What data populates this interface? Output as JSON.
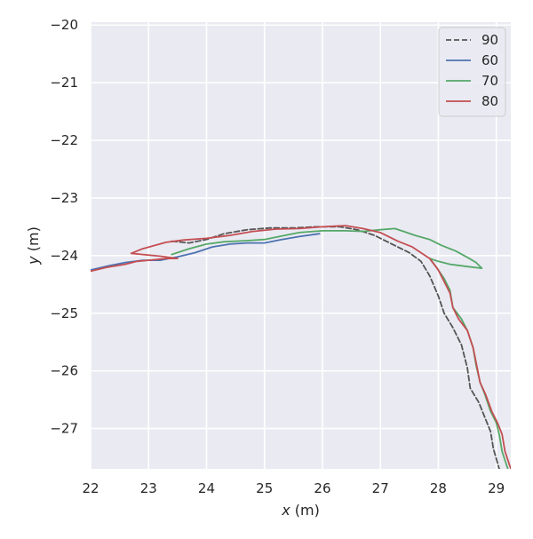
{
  "chart_data": {
    "type": "line",
    "xlabel_var": "x",
    "xlabel_unit": " (m)",
    "ylabel_var": "y",
    "ylabel_unit": " (m)",
    "xlim": [
      22.0,
      29.25
    ],
    "ylim": [
      -27.7,
      -19.95
    ],
    "xticks": [
      22,
      23,
      24,
      25,
      26,
      27,
      28,
      29
    ],
    "yticks": [
      -20,
      -21,
      -22,
      -23,
      -24,
      -25,
      -26,
      -27
    ],
    "grid": true,
    "legend_position": "top-right",
    "series": [
      {
        "name": "90",
        "color": "#555555",
        "dash": true,
        "points": [
          [
            23.4,
            -23.75
          ],
          [
            23.7,
            -23.78
          ],
          [
            24.0,
            -23.72
          ],
          [
            24.3,
            -23.62
          ],
          [
            24.7,
            -23.55
          ],
          [
            25.1,
            -23.52
          ],
          [
            25.5,
            -23.52
          ],
          [
            25.9,
            -23.5
          ],
          [
            26.3,
            -23.5
          ],
          [
            26.6,
            -23.55
          ],
          [
            26.9,
            -23.65
          ],
          [
            27.2,
            -23.8
          ],
          [
            27.5,
            -23.95
          ],
          [
            27.7,
            -24.1
          ],
          [
            27.85,
            -24.35
          ],
          [
            28.0,
            -24.7
          ],
          [
            28.1,
            -25.0
          ],
          [
            28.25,
            -25.25
          ],
          [
            28.4,
            -25.55
          ],
          [
            28.5,
            -25.95
          ],
          [
            28.55,
            -26.3
          ],
          [
            28.7,
            -26.55
          ],
          [
            28.82,
            -26.85
          ],
          [
            28.9,
            -27.05
          ],
          [
            28.95,
            -27.35
          ],
          [
            29.05,
            -27.7
          ]
        ]
      },
      {
        "name": "60",
        "color": "#4c72b0",
        "dash": false,
        "points": [
          [
            22.0,
            -24.25
          ],
          [
            22.3,
            -24.18
          ],
          [
            22.6,
            -24.12
          ],
          [
            22.9,
            -24.08
          ],
          [
            23.2,
            -24.08
          ],
          [
            23.5,
            -24.02
          ],
          [
            23.8,
            -23.95
          ],
          [
            24.1,
            -23.85
          ],
          [
            24.4,
            -23.8
          ],
          [
            24.7,
            -23.78
          ],
          [
            25.0,
            -23.78
          ],
          [
            25.3,
            -23.72
          ],
          [
            25.6,
            -23.67
          ],
          [
            25.95,
            -23.62
          ]
        ]
      },
      {
        "name": "70",
        "color": "#55a868",
        "dash": false,
        "points": [
          [
            23.4,
            -23.98
          ],
          [
            23.7,
            -23.88
          ],
          [
            24.0,
            -23.8
          ],
          [
            24.3,
            -23.76
          ],
          [
            24.7,
            -23.74
          ],
          [
            25.0,
            -23.72
          ],
          [
            25.3,
            -23.66
          ],
          [
            25.6,
            -23.6
          ],
          [
            26.0,
            -23.57
          ],
          [
            26.4,
            -23.57
          ],
          [
            26.7,
            -23.58
          ],
          [
            27.0,
            -23.55
          ],
          [
            27.25,
            -23.53
          ],
          [
            27.4,
            -23.58
          ],
          [
            27.6,
            -23.65
          ],
          [
            27.85,
            -23.72
          ],
          [
            28.05,
            -23.82
          ],
          [
            28.3,
            -23.92
          ],
          [
            28.5,
            -24.03
          ],
          [
            28.65,
            -24.12
          ],
          [
            28.75,
            -24.22
          ],
          [
            28.5,
            -24.19
          ],
          [
            28.2,
            -24.15
          ],
          [
            28.0,
            -24.1
          ],
          [
            27.85,
            -24.05
          ],
          [
            27.98,
            -24.22
          ],
          [
            28.1,
            -24.4
          ],
          [
            28.2,
            -24.6
          ],
          [
            28.25,
            -24.9
          ],
          [
            28.4,
            -25.1
          ],
          [
            28.5,
            -25.3
          ],
          [
            28.6,
            -25.6
          ],
          [
            28.65,
            -25.9
          ],
          [
            28.72,
            -26.2
          ],
          [
            28.8,
            -26.4
          ],
          [
            28.9,
            -26.7
          ],
          [
            29.0,
            -26.9
          ],
          [
            29.05,
            -27.1
          ],
          [
            29.1,
            -27.4
          ],
          [
            29.2,
            -27.7
          ]
        ]
      },
      {
        "name": "80",
        "color": "#c44e52",
        "dash": false,
        "points": [
          [
            22.0,
            -24.27
          ],
          [
            22.3,
            -24.2
          ],
          [
            22.6,
            -24.15
          ],
          [
            22.8,
            -24.1
          ],
          [
            23.0,
            -24.08
          ],
          [
            23.3,
            -24.05
          ],
          [
            23.5,
            -24.05
          ],
          [
            23.2,
            -24.01
          ],
          [
            22.9,
            -23.98
          ],
          [
            22.7,
            -23.96
          ],
          [
            22.9,
            -23.88
          ],
          [
            23.3,
            -23.77
          ],
          [
            23.6,
            -23.73
          ],
          [
            24.0,
            -23.7
          ],
          [
            24.4,
            -23.65
          ],
          [
            24.8,
            -23.58
          ],
          [
            25.2,
            -23.54
          ],
          [
            25.6,
            -23.53
          ],
          [
            26.0,
            -23.5
          ],
          [
            26.4,
            -23.48
          ],
          [
            26.7,
            -23.53
          ],
          [
            27.0,
            -23.6
          ],
          [
            27.3,
            -23.75
          ],
          [
            27.55,
            -23.85
          ],
          [
            27.7,
            -23.95
          ],
          [
            27.85,
            -24.05
          ],
          [
            28.0,
            -24.25
          ],
          [
            28.1,
            -24.45
          ],
          [
            28.2,
            -24.65
          ],
          [
            28.25,
            -24.9
          ],
          [
            28.35,
            -25.1
          ],
          [
            28.5,
            -25.3
          ],
          [
            28.6,
            -25.6
          ],
          [
            28.65,
            -25.85
          ],
          [
            28.72,
            -26.2
          ],
          [
            28.82,
            -26.42
          ],
          [
            28.92,
            -26.7
          ],
          [
            29.02,
            -26.9
          ],
          [
            29.1,
            -27.1
          ],
          [
            29.15,
            -27.4
          ],
          [
            29.25,
            -27.7
          ]
        ]
      }
    ]
  }
}
